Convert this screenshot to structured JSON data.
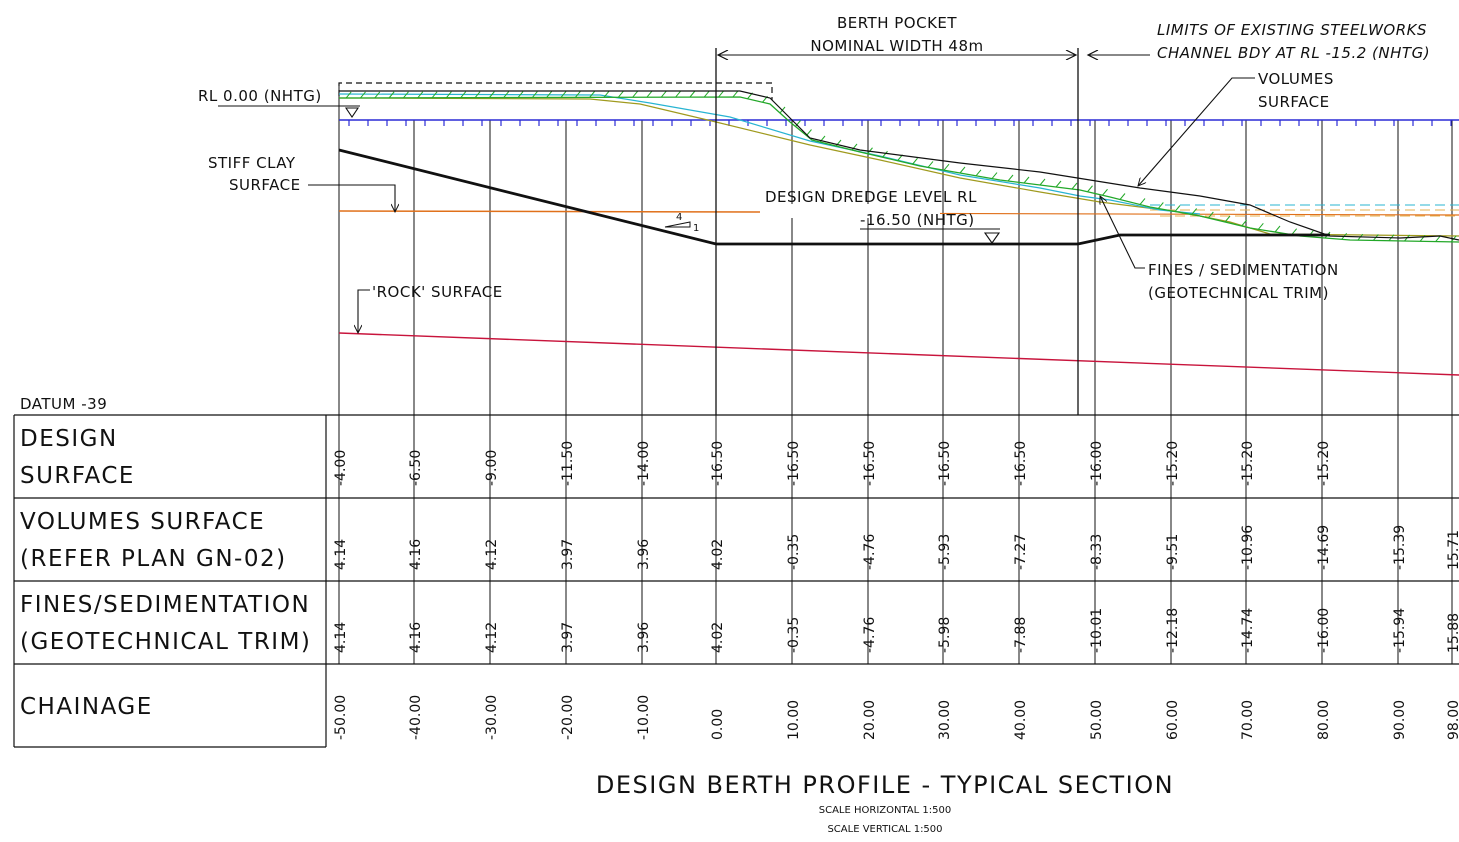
{
  "header": {
    "berth_pocket_line1": "BERTH POCKET",
    "berth_pocket_line2": "NOMINAL WIDTH 48m",
    "limits_line1": "LIMITS OF EXISTING STEELWORKS",
    "limits_line2": "CHANNEL BDY AT RL -15.2 (NHTG)",
    "volumes_line1": "VOLUMES",
    "volumes_line2": "SURFACE"
  },
  "labels": {
    "rl_zero": "RL 0.00 (NHTG)",
    "stiff_clay_line1": "STIFF CLAY",
    "stiff_clay_line2": "SURFACE",
    "rock_surface": "'ROCK' SURFACE",
    "dredge_line1": "DESIGN DREDGE LEVEL RL",
    "dredge_line2": "-16.50 (NHTG)",
    "fines_line1": "FINES / SEDIMENTATION",
    "fines_line2": "(GEOTECHNICAL TRIM)",
    "slope_run": "4",
    "slope_rise": "1",
    "datum": "DATUM -39"
  },
  "table": {
    "rows": [
      {
        "line1": "DESIGN",
        "line2": "SURFACE"
      },
      {
        "line1": "VOLUMES SURFACE",
        "line2": "(REFER PLAN GN-02)"
      },
      {
        "line1": "FINES/SEDIMENTATION",
        "line2": "(GEOTECHNICAL TRIM)"
      },
      {
        "line1": "CHAINAGE",
        "line2": ""
      }
    ],
    "design_surface": [
      "-4.00",
      "-6.50",
      "-9.00",
      "-11.50",
      "-14.00",
      "-16.50",
      "-16.50",
      "-16.50",
      "-16.50",
      "-16.50",
      "-16.00",
      "-15.20",
      "-15.20",
      "-15.20"
    ],
    "volumes_surface": [
      "4.14",
      "4.16",
      "4.12",
      "3.97",
      "3.96",
      "4.02",
      "-0.35",
      "-4.76",
      "-5.93",
      "-7.27",
      "-8.33",
      "-9.51",
      "-10.96",
      "-14.69",
      "-15.39",
      "15.71"
    ],
    "fines_sedimentation": [
      "4.14",
      "4.16",
      "4.12",
      "3.97",
      "3.96",
      "4.02",
      "-0.35",
      "-4.76",
      "-5.98",
      "-7.88",
      "-10.01",
      "-12.18",
      "-14.74",
      "-16.00",
      "-15.94",
      "15.88"
    ],
    "chainage": [
      "-50.00",
      "-40.00",
      "-30.00",
      "-20.00",
      "-10.00",
      "0.00",
      "10.00",
      "20.00",
      "30.00",
      "40.00",
      "50.00",
      "60.00",
      "70.00",
      "80.00",
      "90.00",
      "98.00"
    ]
  },
  "title": {
    "main": "DESIGN BERTH PROFILE - TYPICAL SECTION",
    "scale_h": "SCALE HORIZONTAL 1:500",
    "scale_v": "SCALE VERTICAL 1:500"
  },
  "colors": {
    "water": "#2b2bd6",
    "stiff_clay": "#e0701a",
    "rock": "#c8143c",
    "design": "#000000",
    "volumes": "#000000",
    "fines_green": "#23a829",
    "cyan": "#28b4d2",
    "olive": "#a09a1e",
    "dashed_tan": "#e6b050"
  }
}
